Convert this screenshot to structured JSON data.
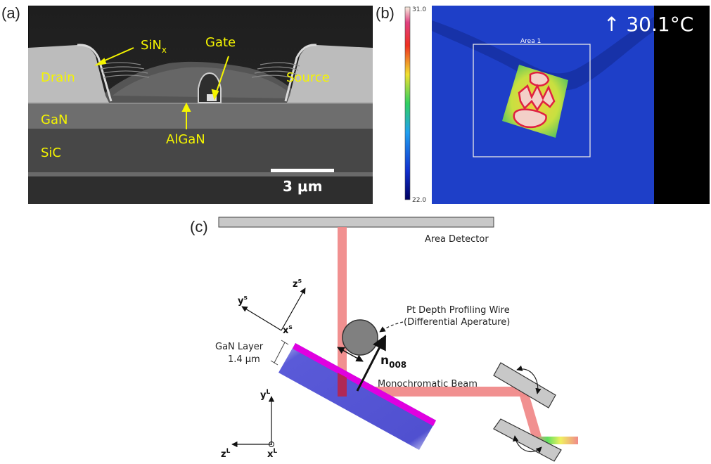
{
  "panel_a": {
    "label": "(a)",
    "layers": {
      "sinx": "SiN",
      "sinx_sub": "x",
      "gate": "Gate",
      "drain": "Drain",
      "source": "Source",
      "gan": "GaN",
      "algan": "AlGaN",
      "sic": "SiC"
    },
    "scalebar": "3 μm",
    "colors": {
      "annotation": "#f5f500"
    }
  },
  "panel_b": {
    "label": "(b)",
    "colorbar_max": "31.0",
    "colorbar_min": "22.0",
    "readout": "↑ 30.1°C",
    "area_label": "Area 1"
  },
  "panel_c": {
    "label": "(c)",
    "area_detector": "Area Detector",
    "wire_label_1": "Pt Depth Profiling Wire",
    "wire_label_2": "(Differential Aperature)",
    "gan_layer_1": "GaN Layer",
    "gan_layer_2": "1.4 μm",
    "n_vector": "n",
    "n_vector_sub": "008",
    "beam_label": "Monochromatic Beam",
    "sample_axes": {
      "y": "y",
      "y_sup": "s",
      "z": "z",
      "z_sup": "s",
      "x": "x",
      "x_sup": "s"
    },
    "lab_axes": {
      "y": "y",
      "y_sup": "L",
      "z": "z",
      "z_sup": "L",
      "x": "x",
      "x_sup": "L"
    },
    "colors": {
      "beam": "#f08a8a",
      "layer": "#5a5ad8",
      "layer_top": "#e000e0",
      "detector": "#c8c8c8"
    }
  }
}
